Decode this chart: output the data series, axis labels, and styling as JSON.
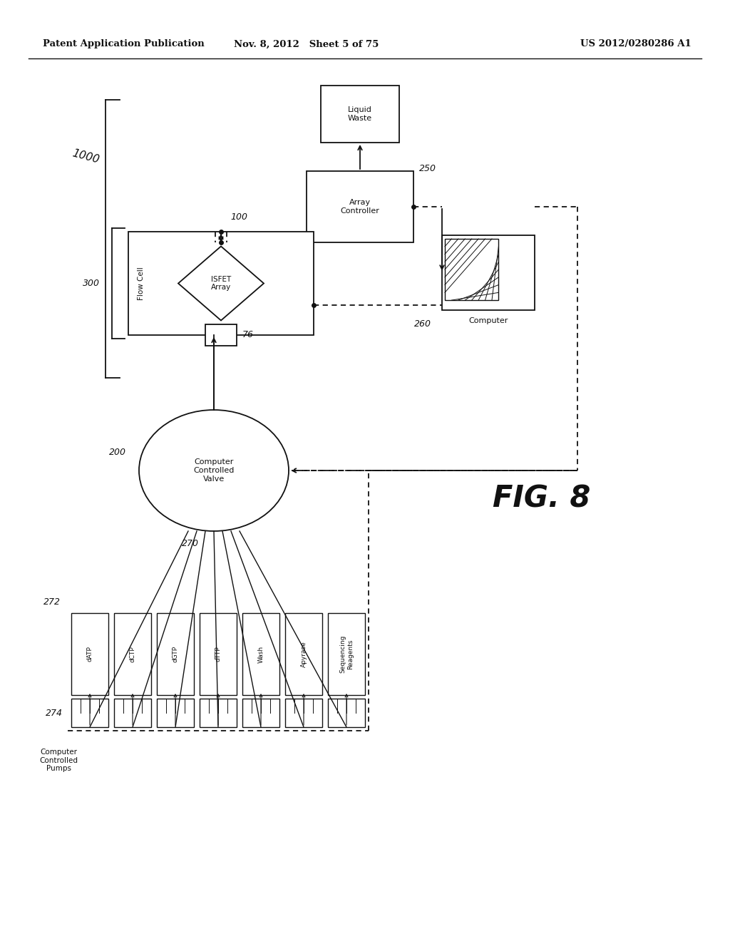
{
  "header_left": "Patent Application Publication",
  "header_center": "Nov. 8, 2012   Sheet 5 of 75",
  "header_right": "US 2012/0280286 A1",
  "fig_label": "FIG. 8",
  "bg_color": "#ffffff",
  "text_color": "#111111",
  "gray": "#888888"
}
